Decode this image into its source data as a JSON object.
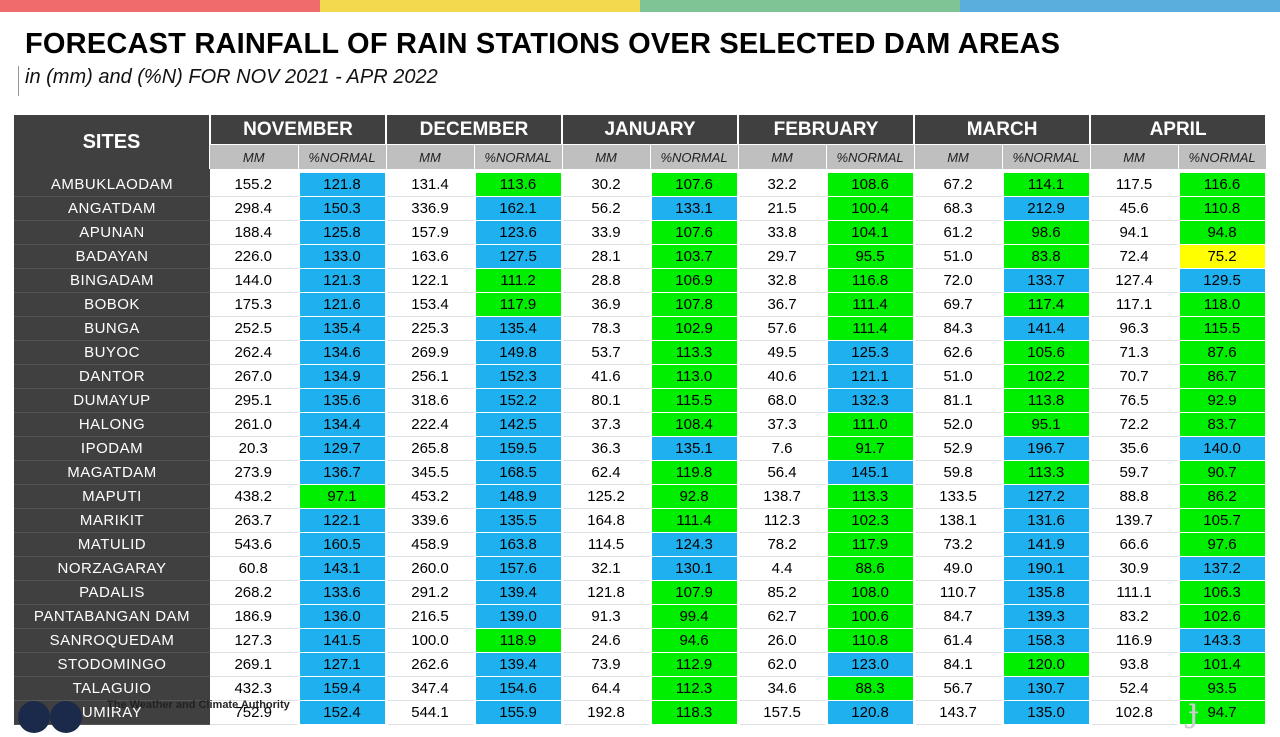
{
  "colors": {
    "bar": [
      "#f06b6b",
      "#f2d94e",
      "#7fc495",
      "#5aaede"
    ],
    "above": "#1eb0ef",
    "near": "#00ee00",
    "below": "#ffff00"
  },
  "title": "FORECAST RAINFALL OF RAIN STATIONS OVER SELECTED DAM AREAS",
  "subtitle": "in (mm) and (%N) FOR NOV 2021 - APR 2022",
  "table": {
    "sites_header": "SITES",
    "months": [
      "NOVEMBER",
      "DECEMBER",
      "JANUARY",
      "FEBRUARY",
      "MARCH",
      "APRIL"
    ],
    "mm_label": "MM",
    "pct_label": "%NORMAL",
    "rows": [
      {
        "site": "AMBUKLAODAM",
        "mm": [
          "155.2",
          "131.4",
          "30.2",
          "32.2",
          "67.2",
          "117.5"
        ],
        "pct": [
          "121.8",
          "113.6",
          "107.6",
          "108.6",
          "114.1",
          "116.6"
        ],
        "cls": [
          "above",
          "near",
          "near",
          "near",
          "near",
          "near"
        ]
      },
      {
        "site": "ANGATDAM",
        "mm": [
          "298.4",
          "336.9",
          "56.2",
          "21.5",
          "68.3",
          "45.6"
        ],
        "pct": [
          "150.3",
          "162.1",
          "133.1",
          "100.4",
          "212.9",
          "110.8"
        ],
        "cls": [
          "above",
          "above",
          "above",
          "near",
          "above",
          "near"
        ]
      },
      {
        "site": "APUNAN",
        "mm": [
          "188.4",
          "157.9",
          "33.9",
          "33.8",
          "61.2",
          "94.1"
        ],
        "pct": [
          "125.8",
          "123.6",
          "107.6",
          "104.1",
          "98.6",
          "94.8"
        ],
        "cls": [
          "above",
          "above",
          "near",
          "near",
          "near",
          "near"
        ]
      },
      {
        "site": "BADAYAN",
        "mm": [
          "226.0",
          "163.6",
          "28.1",
          "29.7",
          "51.0",
          "72.4"
        ],
        "pct": [
          "133.0",
          "127.5",
          "103.7",
          "95.5",
          "83.8",
          "75.2"
        ],
        "cls": [
          "above",
          "above",
          "near",
          "near",
          "near",
          "below"
        ]
      },
      {
        "site": "BINGADAM",
        "mm": [
          "144.0",
          "122.1",
          "28.8",
          "32.8",
          "72.0",
          "127.4"
        ],
        "pct": [
          "121.3",
          "111.2",
          "106.9",
          "116.8",
          "133.7",
          "129.5"
        ],
        "cls": [
          "above",
          "near",
          "near",
          "near",
          "above",
          "above"
        ]
      },
      {
        "site": "BOBOK",
        "mm": [
          "175.3",
          "153.4",
          "36.9",
          "36.7",
          "69.7",
          "117.1"
        ],
        "pct": [
          "121.6",
          "117.9",
          "107.8",
          "111.4",
          "117.4",
          "118.0"
        ],
        "cls": [
          "above",
          "near",
          "near",
          "near",
          "near",
          "near"
        ]
      },
      {
        "site": "BUNGA",
        "mm": [
          "252.5",
          "225.3",
          "78.3",
          "57.6",
          "84.3",
          "96.3"
        ],
        "pct": [
          "135.4",
          "135.4",
          "102.9",
          "111.4",
          "141.4",
          "115.5"
        ],
        "cls": [
          "above",
          "above",
          "near",
          "near",
          "above",
          "near"
        ]
      },
      {
        "site": "BUYOC",
        "mm": [
          "262.4",
          "269.9",
          "53.7",
          "49.5",
          "62.6",
          "71.3"
        ],
        "pct": [
          "134.6",
          "149.8",
          "113.3",
          "125.3",
          "105.6",
          "87.6"
        ],
        "cls": [
          "above",
          "above",
          "near",
          "above",
          "near",
          "near"
        ]
      },
      {
        "site": "DANTOR",
        "mm": [
          "267.0",
          "256.1",
          "41.6",
          "40.6",
          "51.0",
          "70.7"
        ],
        "pct": [
          "134.9",
          "152.3",
          "113.0",
          "121.1",
          "102.2",
          "86.7"
        ],
        "cls": [
          "above",
          "above",
          "near",
          "above",
          "near",
          "near"
        ]
      },
      {
        "site": "DUMAYUP",
        "mm": [
          "295.1",
          "318.6",
          "80.1",
          "68.0",
          "81.1",
          "76.5"
        ],
        "pct": [
          "135.6",
          "152.2",
          "115.5",
          "132.3",
          "113.8",
          "92.9"
        ],
        "cls": [
          "above",
          "above",
          "near",
          "above",
          "near",
          "near"
        ]
      },
      {
        "site": "HALONG",
        "mm": [
          "261.0",
          "222.4",
          "37.3",
          "37.3",
          "52.0",
          "72.2"
        ],
        "pct": [
          "134.4",
          "142.5",
          "108.4",
          "111.0",
          "95.1",
          "83.7"
        ],
        "cls": [
          "above",
          "above",
          "near",
          "near",
          "near",
          "near"
        ]
      },
      {
        "site": "IPODAM",
        "mm": [
          "20.3",
          "265.8",
          "36.3",
          "7.6",
          "52.9",
          "35.6"
        ],
        "pct": [
          "129.7",
          "159.5",
          "135.1",
          "91.7",
          "196.7",
          "140.0"
        ],
        "cls": [
          "above",
          "above",
          "above",
          "near",
          "above",
          "above"
        ]
      },
      {
        "site": "MAGATDAM",
        "mm": [
          "273.9",
          "345.5",
          "62.4",
          "56.4",
          "59.8",
          "59.7"
        ],
        "pct": [
          "136.7",
          "168.5",
          "119.8",
          "145.1",
          "113.3",
          "90.7"
        ],
        "cls": [
          "above",
          "above",
          "near",
          "above",
          "near",
          "near"
        ]
      },
      {
        "site": "MAPUTI",
        "mm": [
          "438.2",
          "453.2",
          "125.2",
          "138.7",
          "133.5",
          "88.8"
        ],
        "pct": [
          "97.1",
          "148.9",
          "92.8",
          "113.3",
          "127.2",
          "86.2"
        ],
        "cls": [
          "near",
          "above",
          "near",
          "near",
          "above",
          "near"
        ]
      },
      {
        "site": "MARIKIT",
        "mm": [
          "263.7",
          "339.6",
          "164.8",
          "112.3",
          "138.1",
          "139.7"
        ],
        "pct": [
          "122.1",
          "135.5",
          "111.4",
          "102.3",
          "131.6",
          "105.7"
        ],
        "cls": [
          "above",
          "above",
          "near",
          "near",
          "above",
          "near"
        ]
      },
      {
        "site": "MATULID",
        "mm": [
          "543.6",
          "458.9",
          "114.5",
          "78.2",
          "73.2",
          "66.6"
        ],
        "pct": [
          "160.5",
          "163.8",
          "124.3",
          "117.9",
          "141.9",
          "97.6"
        ],
        "cls": [
          "above",
          "above",
          "above",
          "near",
          "above",
          "near"
        ]
      },
      {
        "site": "NORZAGARAY",
        "mm": [
          "60.8",
          "260.0",
          "32.1",
          "4.4",
          "49.0",
          "30.9"
        ],
        "pct": [
          "143.1",
          "157.6",
          "130.1",
          "88.6",
          "190.1",
          "137.2"
        ],
        "cls": [
          "above",
          "above",
          "above",
          "near",
          "above",
          "above"
        ]
      },
      {
        "site": "PADALIS",
        "mm": [
          "268.2",
          "291.2",
          "121.8",
          "85.2",
          "110.7",
          "111.1"
        ],
        "pct": [
          "133.6",
          "139.4",
          "107.9",
          "108.0",
          "135.8",
          "106.3"
        ],
        "cls": [
          "above",
          "above",
          "near",
          "near",
          "above",
          "near"
        ]
      },
      {
        "site": "PANTABANGAN DAM",
        "mm": [
          "186.9",
          "216.5",
          "91.3",
          "62.7",
          "84.7",
          "83.2"
        ],
        "pct": [
          "136.0",
          "139.0",
          "99.4",
          "100.6",
          "139.3",
          "102.6"
        ],
        "cls": [
          "above",
          "above",
          "near",
          "near",
          "above",
          "near"
        ]
      },
      {
        "site": "SANROQUEDAM",
        "mm": [
          "127.3",
          "100.0",
          "24.6",
          "26.0",
          "61.4",
          "116.9"
        ],
        "pct": [
          "141.5",
          "118.9",
          "94.6",
          "110.8",
          "158.3",
          "143.3"
        ],
        "cls": [
          "above",
          "near",
          "near",
          "near",
          "above",
          "above"
        ]
      },
      {
        "site": "STODOMINGO",
        "mm": [
          "269.1",
          "262.6",
          "73.9",
          "62.0",
          "84.1",
          "93.8"
        ],
        "pct": [
          "127.1",
          "139.4",
          "112.9",
          "123.0",
          "120.0",
          "101.4"
        ],
        "cls": [
          "above",
          "above",
          "near",
          "above",
          "near",
          "near"
        ]
      },
      {
        "site": "TALAGUIO",
        "mm": [
          "432.3",
          "347.4",
          "64.4",
          "34.6",
          "56.7",
          "52.4"
        ],
        "pct": [
          "159.4",
          "154.6",
          "112.3",
          "88.3",
          "130.7",
          "93.5"
        ],
        "cls": [
          "above",
          "above",
          "near",
          "near",
          "above",
          "near"
        ]
      },
      {
        "site": "UMIRAY",
        "mm": [
          "752.9",
          "544.1",
          "192.8",
          "157.5",
          "143.7",
          "102.8"
        ],
        "pct": [
          "152.4",
          "155.9",
          "118.3",
          "120.8",
          "135.0",
          "94.7"
        ],
        "cls": [
          "above",
          "above",
          "near",
          "above",
          "above",
          "near"
        ]
      }
    ]
  },
  "footer": {
    "text": "The Weather and Climate Authority"
  }
}
